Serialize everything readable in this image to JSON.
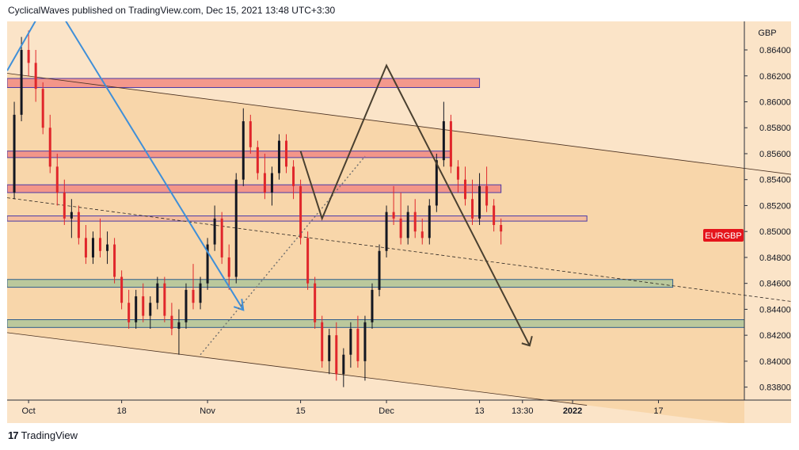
{
  "header": {
    "publish_line": "CyclicalWaves published on TradingView.com, Dec 15, 2021 13:48 UTC+3:30"
  },
  "footer": {
    "brand": "TradingView",
    "logo_glyph": "17"
  },
  "colors": {
    "background": "#fbe4c8",
    "channel_fill": "#f8d6aa",
    "candle_up": "#131722",
    "candle_down": "#e0262b",
    "resistance_zone": "#f28f85",
    "support_zone": "#b4c79a",
    "symbol_badge": "#e5141b",
    "blue_arrow": "#3f8fd8",
    "forecast_path": "#4a4030"
  },
  "chart_data": {
    "type": "candlestick",
    "symbol": "EURGBP",
    "currency": "GBP",
    "last_price_label": "EURGBP",
    "y_range": [
      0.837,
      0.8662
    ],
    "y_ticks": [
      "0.86400",
      "0.86200",
      "0.86000",
      "0.85800",
      "0.85600",
      "0.85400",
      "0.85200",
      "0.85000",
      "0.84800",
      "0.84600",
      "0.84400",
      "0.84200",
      "0.84000",
      "0.83800"
    ],
    "y_tick_values": [
      0.864,
      0.862,
      0.86,
      0.858,
      0.856,
      0.854,
      0.852,
      0.85,
      0.848,
      0.846,
      0.844,
      0.842,
      0.84,
      0.838
    ],
    "x_ticks": [
      {
        "label": "Oct",
        "index": 2,
        "bold": false
      },
      {
        "label": "18",
        "index": 15,
        "bold": false
      },
      {
        "label": "Nov",
        "index": 27,
        "bold": false
      },
      {
        "label": "15",
        "index": 40,
        "bold": false
      },
      {
        "label": "Dec",
        "index": 52,
        "bold": false
      },
      {
        "label": "13",
        "index": 65,
        "bold": false
      },
      {
        "label": "13:30",
        "index": 71,
        "bold": false
      },
      {
        "label": "2022",
        "index": 78,
        "bold": true
      },
      {
        "label": "17",
        "index": 90,
        "bold": false
      }
    ],
    "x_range": [
      -1,
      102
    ],
    "candles": [
      [
        0.853,
        0.86,
        0.8525,
        0.859
      ],
      [
        0.859,
        0.865,
        0.8585,
        0.864
      ],
      [
        0.864,
        0.8655,
        0.862,
        0.863
      ],
      [
        0.863,
        0.864,
        0.86,
        0.861
      ],
      [
        0.861,
        0.8615,
        0.8575,
        0.858
      ],
      [
        0.858,
        0.859,
        0.8545,
        0.855
      ],
      [
        0.855,
        0.856,
        0.852,
        0.853
      ],
      [
        0.853,
        0.854,
        0.8505,
        0.851
      ],
      [
        0.851,
        0.8525,
        0.8495,
        0.8515
      ],
      [
        0.8515,
        0.852,
        0.849,
        0.8495
      ],
      [
        0.8495,
        0.8505,
        0.8475,
        0.848
      ],
      [
        0.848,
        0.85,
        0.8475,
        0.8495
      ],
      [
        0.8495,
        0.851,
        0.848,
        0.8485
      ],
      [
        0.8485,
        0.85,
        0.8475,
        0.849
      ],
      [
        0.849,
        0.8495,
        0.846,
        0.8465
      ],
      [
        0.8465,
        0.847,
        0.844,
        0.8445
      ],
      [
        0.8445,
        0.8455,
        0.8425,
        0.843
      ],
      [
        0.843,
        0.8455,
        0.8425,
        0.845
      ],
      [
        0.845,
        0.846,
        0.843,
        0.8435
      ],
      [
        0.8435,
        0.845,
        0.8425,
        0.8445
      ],
      [
        0.8445,
        0.8465,
        0.844,
        0.846
      ],
      [
        0.846,
        0.8465,
        0.843,
        0.8435
      ],
      [
        0.8435,
        0.8445,
        0.842,
        0.8425
      ],
      [
        0.8425,
        0.844,
        0.8405,
        0.843
      ],
      [
        0.843,
        0.846,
        0.8425,
        0.8455
      ],
      [
        0.8455,
        0.8475,
        0.844,
        0.8445
      ],
      [
        0.8445,
        0.8465,
        0.844,
        0.846
      ],
      [
        0.846,
        0.8495,
        0.8455,
        0.849
      ],
      [
        0.849,
        0.852,
        0.8485,
        0.851
      ],
      [
        0.851,
        0.8515,
        0.8475,
        0.848
      ],
      [
        0.848,
        0.849,
        0.8455,
        0.8465
      ],
      [
        0.8465,
        0.8545,
        0.846,
        0.854
      ],
      [
        0.854,
        0.8595,
        0.8535,
        0.8585
      ],
      [
        0.8585,
        0.859,
        0.856,
        0.8565
      ],
      [
        0.8565,
        0.857,
        0.854,
        0.8545
      ],
      [
        0.8545,
        0.856,
        0.8525,
        0.853
      ],
      [
        0.853,
        0.855,
        0.852,
        0.8545
      ],
      [
        0.8545,
        0.8575,
        0.854,
        0.857
      ],
      [
        0.857,
        0.8575,
        0.8545,
        0.855
      ],
      [
        0.855,
        0.8555,
        0.8525,
        0.8535
      ],
      [
        0.8535,
        0.854,
        0.849,
        0.8495
      ],
      [
        0.8495,
        0.85,
        0.8455,
        0.846
      ],
      [
        0.846,
        0.8465,
        0.8425,
        0.843
      ],
      [
        0.843,
        0.8435,
        0.8395,
        0.84
      ],
      [
        0.84,
        0.8425,
        0.839,
        0.842
      ],
      [
        0.842,
        0.843,
        0.8385,
        0.839
      ],
      [
        0.839,
        0.841,
        0.838,
        0.8405
      ],
      [
        0.8405,
        0.843,
        0.8395,
        0.8425
      ],
      [
        0.8425,
        0.8435,
        0.8395,
        0.84
      ],
      [
        0.84,
        0.8435,
        0.8385,
        0.843
      ],
      [
        0.843,
        0.846,
        0.8425,
        0.8455
      ],
      [
        0.8455,
        0.849,
        0.845,
        0.8485
      ],
      [
        0.8485,
        0.852,
        0.848,
        0.8515
      ],
      [
        0.8515,
        0.8535,
        0.8505,
        0.851
      ],
      [
        0.851,
        0.853,
        0.849,
        0.8495
      ],
      [
        0.8495,
        0.852,
        0.849,
        0.8515
      ],
      [
        0.8515,
        0.8525,
        0.8495,
        0.85
      ],
      [
        0.85,
        0.851,
        0.849,
        0.8495
      ],
      [
        0.8495,
        0.8525,
        0.849,
        0.852
      ],
      [
        0.852,
        0.856,
        0.8515,
        0.8555
      ],
      [
        0.8555,
        0.86,
        0.855,
        0.8585
      ],
      [
        0.8585,
        0.859,
        0.8545,
        0.855
      ],
      [
        0.855,
        0.8555,
        0.853,
        0.854
      ],
      [
        0.854,
        0.855,
        0.852,
        0.8525
      ],
      [
        0.8525,
        0.854,
        0.8505,
        0.851
      ],
      [
        0.851,
        0.8545,
        0.8505,
        0.8535
      ],
      [
        0.8535,
        0.855,
        0.8515,
        0.852
      ],
      [
        0.852,
        0.8525,
        0.85,
        0.8505
      ],
      [
        0.8505,
        0.851,
        0.849,
        0.85
      ]
    ],
    "zones": [
      {
        "kind": "resistance",
        "from_index": -1,
        "to_index": 65,
        "top": 0.8618,
        "bottom": 0.8611
      },
      {
        "kind": "resistance",
        "from_index": -1,
        "to_index": 61,
        "top": 0.8562,
        "bottom": 0.8557
      },
      {
        "kind": "resistance",
        "from_index": -1,
        "to_index": 68,
        "top": 0.8536,
        "bottom": 0.853
      },
      {
        "kind": "resistance-thin",
        "from_index": -1,
        "to_index": 80,
        "top": 0.8512,
        "bottom": 0.8508
      },
      {
        "kind": "support",
        "from_index": -1,
        "to_index": 92,
        "top": 0.8463,
        "bottom": 0.8457
      },
      {
        "kind": "support",
        "from_index": -1,
        "to_index": 109,
        "top": 0.8432,
        "bottom": 0.8426
      }
    ],
    "channel": {
      "upper": [
        [
          -1,
          0.8622
        ],
        [
          110,
          0.8543
        ]
      ],
      "mid": [
        [
          -1,
          0.8526
        ],
        [
          110,
          0.8445
        ]
      ],
      "lower": [
        [
          -1,
          0.8422
        ],
        [
          80,
          0.8366
        ]
      ]
    },
    "blue_arrow": [
      [
        -1,
        0.8624
      ],
      [
        5,
        0.8682
      ],
      [
        32,
        0.84395
      ]
    ],
    "dotted_line": [
      [
        26,
        0.8405
      ],
      [
        49,
        0.8558
      ]
    ],
    "forecast_path": [
      [
        40,
        0.8562
      ],
      [
        43,
        0.851
      ],
      [
        52,
        0.8628
      ],
      [
        72,
        0.8412
      ]
    ]
  }
}
